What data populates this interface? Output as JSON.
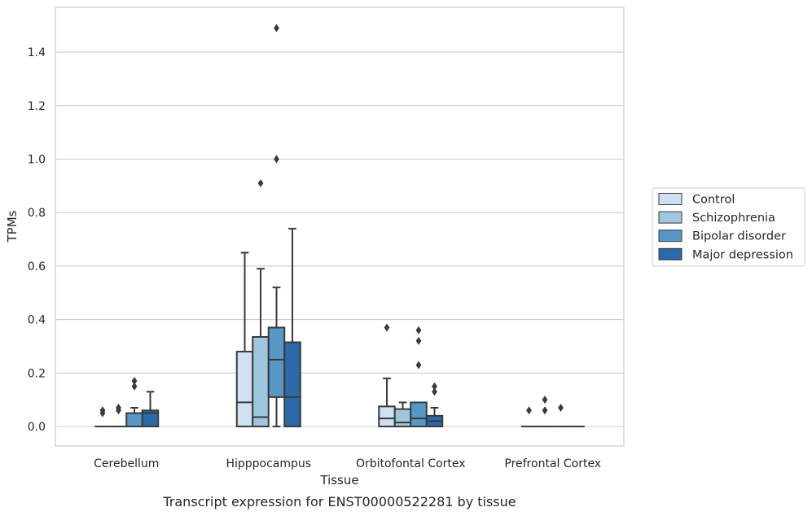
{
  "chart_data": {
    "type": "box",
    "xlabel": "Tissue",
    "ylabel": "TPMs",
    "caption": "Transcript expression for ENST00000522281 by tissue",
    "ylim": [
      -0.07,
      1.57
    ],
    "yticks": [
      "0.0",
      "0.2",
      "0.4",
      "0.6",
      "0.8",
      "1.0",
      "1.2",
      "1.4"
    ],
    "ytick_values": [
      0.0,
      0.2,
      0.4,
      0.6,
      0.8,
      1.0,
      1.2,
      1.4
    ],
    "grid": "horizontal",
    "legend_position": "right",
    "categories": [
      "Cerebellum",
      "Hipppocampus",
      "Orbitofontal Cortex",
      "Prefrontal Cortex"
    ],
    "series": [
      {
        "name": "Control",
        "color": "#cfe0f0",
        "boxes": [
          {
            "whislo": 0,
            "q1": 0,
            "med": 0,
            "q3": 0,
            "whishi": 0,
            "fliers": [
              0.05,
              0.06
            ]
          },
          {
            "whislo": 0,
            "q1": 0,
            "med": 0.09,
            "q3": 0.28,
            "whishi": 0.65,
            "fliers": []
          },
          {
            "whislo": 0,
            "q1": 0,
            "med": 0.03,
            "q3": 0.075,
            "whishi": 0.18,
            "fliers": [
              0.37
            ]
          },
          {
            "whislo": 0,
            "q1": 0,
            "med": 0,
            "q3": 0,
            "whishi": 0,
            "fliers": [
              0.06
            ]
          }
        ]
      },
      {
        "name": "Schizophrenia",
        "color": "#9fc6df",
        "boxes": [
          {
            "whislo": 0,
            "q1": 0,
            "med": 0,
            "q3": 0,
            "whishi": 0,
            "fliers": [
              0.06,
              0.07
            ]
          },
          {
            "whislo": 0,
            "q1": 0,
            "med": 0.035,
            "q3": 0.335,
            "whishi": 0.59,
            "fliers": [
              0.91
            ]
          },
          {
            "whislo": 0,
            "q1": 0,
            "med": 0.015,
            "q3": 0.065,
            "whishi": 0.09,
            "fliers": []
          },
          {
            "whislo": 0,
            "q1": 0,
            "med": 0,
            "q3": 0,
            "whishi": 0,
            "fliers": [
              0.06,
              0.1
            ]
          }
        ]
      },
      {
        "name": "Bipolar disorder",
        "color": "#5898c6",
        "boxes": [
          {
            "whislo": 0,
            "q1": 0,
            "med": 0,
            "q3": 0.05,
            "whishi": 0.07,
            "fliers": [
              0.15,
              0.17
            ]
          },
          {
            "whislo": 0,
            "q1": 0.11,
            "med": 0.25,
            "q3": 0.37,
            "whishi": 0.52,
            "fliers": [
              1.0,
              1.49
            ]
          },
          {
            "whislo": 0,
            "q1": 0,
            "med": 0.03,
            "q3": 0.09,
            "whishi": 0.09,
            "fliers": [
              0.23,
              0.32,
              0.36
            ]
          },
          {
            "whislo": 0,
            "q1": 0,
            "med": 0,
            "q3": 0,
            "whishi": 0,
            "fliers": [
              0.07
            ]
          }
        ]
      },
      {
        "name": "Major depression",
        "color": "#2b6aa8",
        "boxes": [
          {
            "whislo": 0,
            "q1": 0,
            "med": 0.05,
            "q3": 0.06,
            "whishi": 0.13,
            "fliers": []
          },
          {
            "whislo": 0,
            "q1": 0,
            "med": 0.11,
            "q3": 0.315,
            "whishi": 0.74,
            "fliers": []
          },
          {
            "whislo": 0,
            "q1": 0,
            "med": 0.02,
            "q3": 0.04,
            "whishi": 0.07,
            "fliers": [
              0.13,
              0.15
            ]
          },
          {
            "whislo": 0,
            "q1": 0,
            "med": 0,
            "q3": 0,
            "whishi": 0,
            "fliers": []
          }
        ]
      }
    ]
  }
}
